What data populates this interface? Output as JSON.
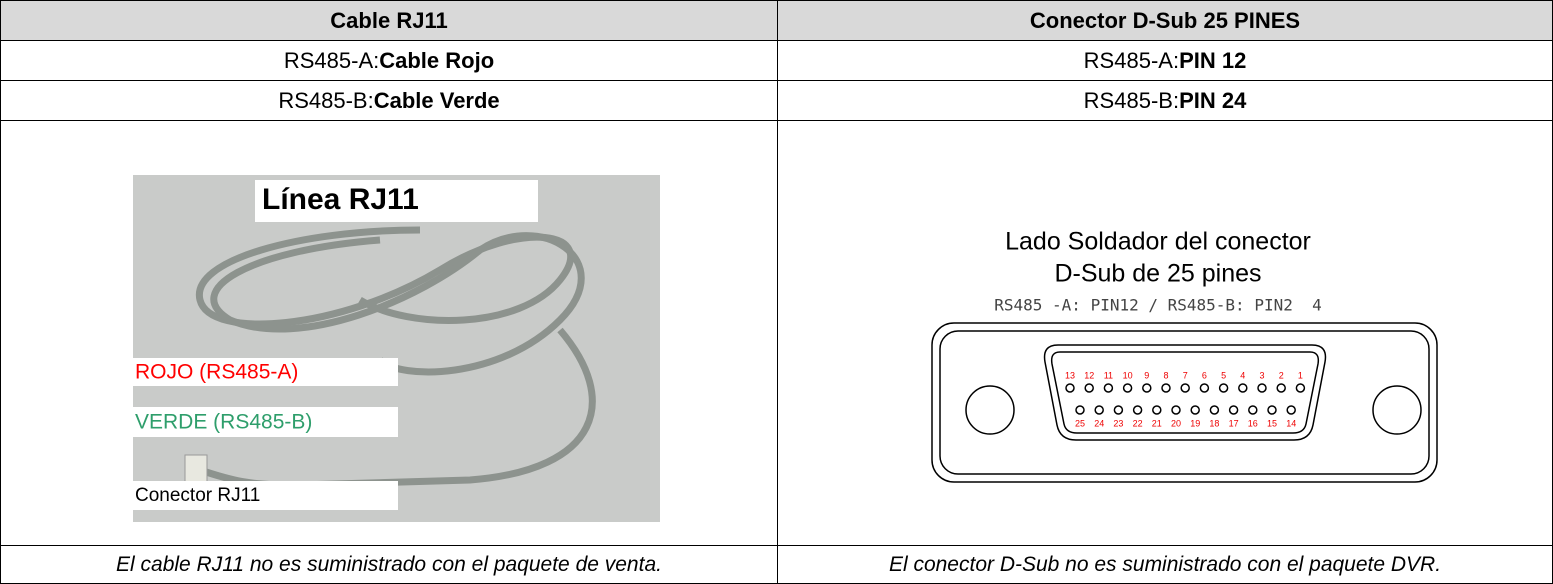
{
  "table": {
    "header": [
      "Cable RJ11",
      "Conector D-Sub 25 PINES"
    ],
    "rows": [
      [
        {
          "label": "RS485-A:",
          "value": "Cable Rojo"
        },
        {
          "label": "RS485-A:",
          "value": "PIN 12"
        }
      ],
      [
        {
          "label": "RS485-B:",
          "value": "Cable Verde"
        },
        {
          "label": "RS485-B:",
          "value": "PIN 24"
        }
      ]
    ],
    "left_image": {
      "title": "Línea RJ11",
      "labels": [
        "ROJO (RS485-A)",
        "VERDE (RS485-B)",
        "Conector RJ11"
      ]
    },
    "right_image": {
      "lines": [
        "Lado Soldador del conector",
        "D-Sub de 25 pines"
      ],
      "note": "RS485 -A: PIN12 / RS485-B: PIN2  4",
      "pins_top": [
        "13",
        "12",
        "11",
        "10",
        "9",
        "8",
        "7",
        "6",
        "5",
        "4",
        "3",
        "2",
        "1"
      ],
      "pins_bottom": [
        "25",
        "24",
        "23",
        "22",
        "21",
        "20",
        "19",
        "18",
        "17",
        "16",
        "15",
        "14"
      ]
    },
    "footer": [
      "El cable RJ11 no es suministrado con el paquete de venta.",
      "El conector D-Sub no es suministrado con el paquete DVR."
    ]
  }
}
